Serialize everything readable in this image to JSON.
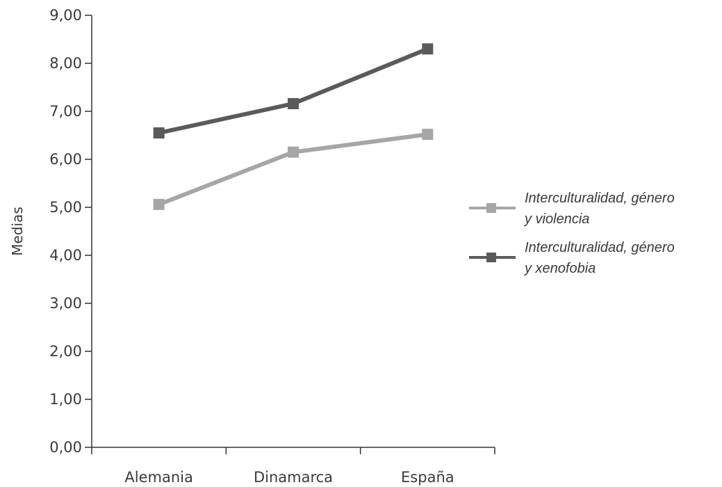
{
  "chart_data": {
    "type": "line",
    "title": "",
    "xlabel": "",
    "ylabel": "Medias",
    "categories": [
      "Alemania",
      "Dinamarca",
      "España"
    ],
    "ylim": [
      0,
      9
    ],
    "ytick_step": 1,
    "ytick_labels": [
      "0,00",
      "1,00",
      "2,00",
      "3,00",
      "4,00",
      "5,00",
      "6,00",
      "7,00",
      "8,00",
      "9,00"
    ],
    "grid": false,
    "legend_position": "right",
    "series": [
      {
        "name": "Interculturalidad, género y violencia",
        "legend_lines": [
          "Interculturalidad, género",
          "y violencia"
        ],
        "values": [
          5.06,
          6.15,
          6.52
        ],
        "color": "#a6a6a6",
        "marker": "square"
      },
      {
        "name": "Interculturalidad, género y xenofobia",
        "legend_lines": [
          "Interculturalidad, género",
          "y xenofobia"
        ],
        "values": [
          6.55,
          7.16,
          8.3
        ],
        "color": "#5a5a5a",
        "marker": "square"
      }
    ]
  }
}
